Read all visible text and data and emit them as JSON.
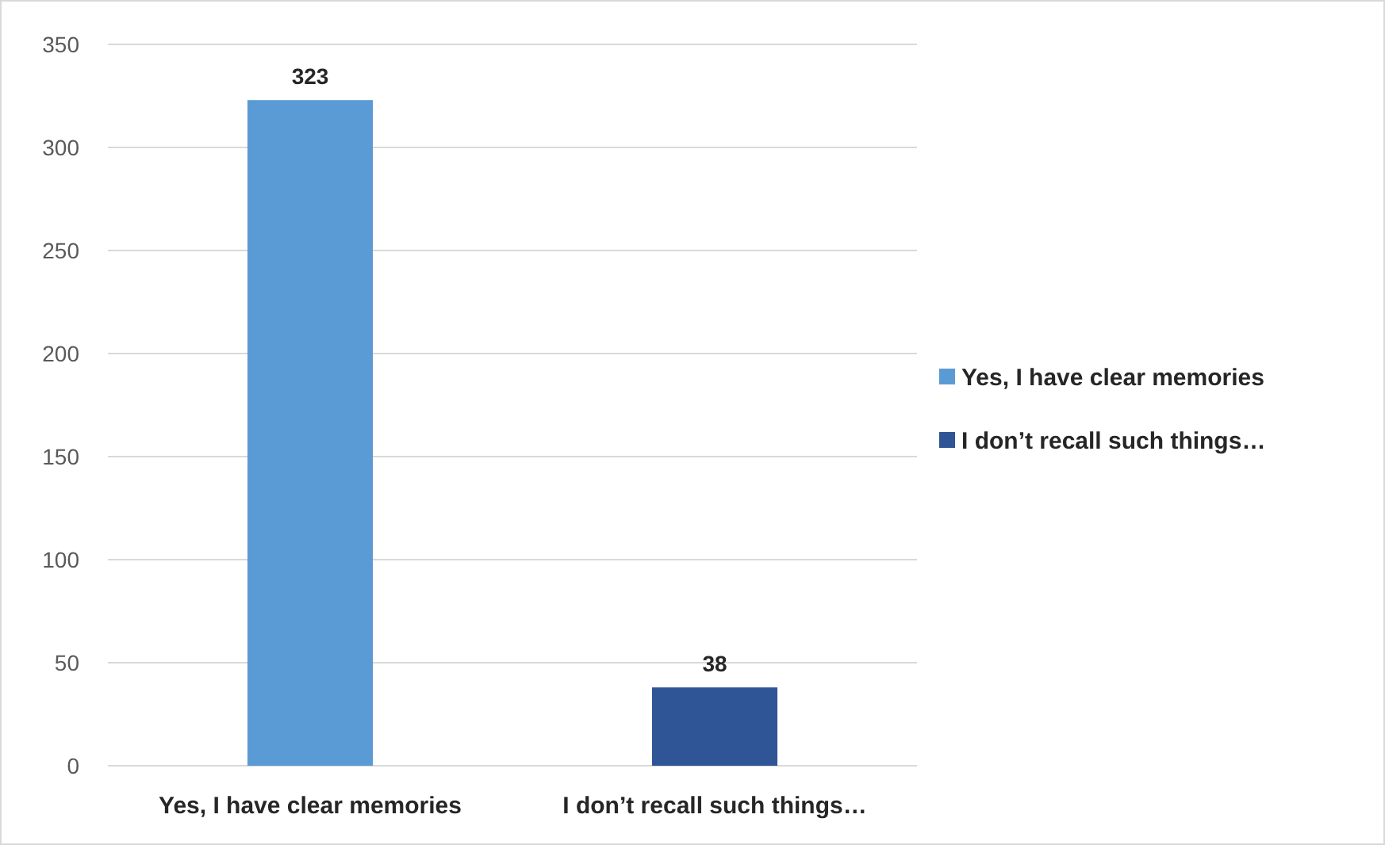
{
  "chart_data": {
    "type": "bar",
    "categories": [
      "Yes, I have clear memories",
      "I don’t recall such things…"
    ],
    "series": [
      {
        "name": "Yes, I have clear memories",
        "color": "#5b9bd5",
        "values": [
          323,
          null
        ]
      },
      {
        "name": "I don’t recall such things…",
        "color": "#2f5597",
        "values": [
          null,
          38
        ]
      }
    ],
    "stacked": true,
    "ylim": [
      0,
      350
    ],
    "yticks": [
      0,
      50,
      100,
      150,
      200,
      250,
      300,
      350
    ],
    "grid": "y",
    "legend": "right",
    "data_labels": true
  }
}
